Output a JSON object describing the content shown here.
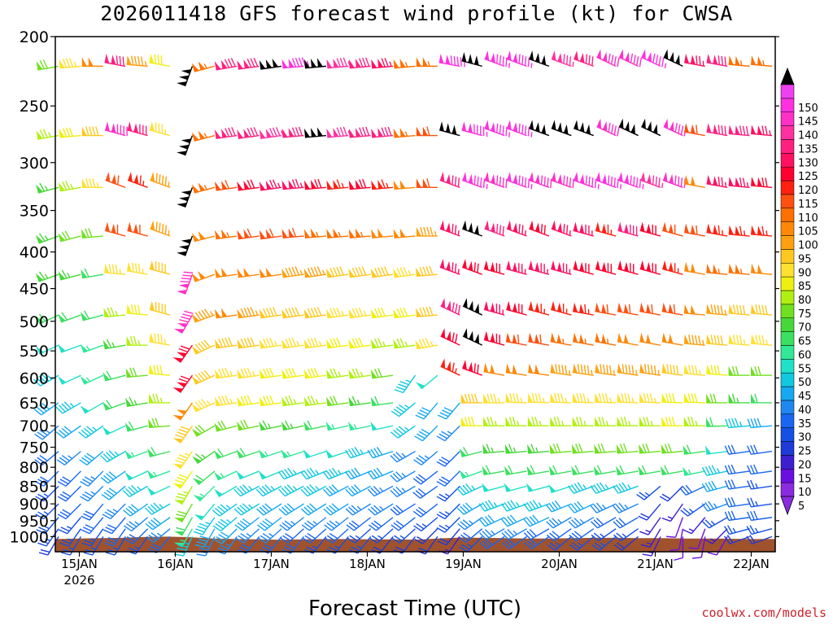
{
  "chart_data": {
    "type": "wind_barb_profile",
    "title": "2026011418 GFS forecast wind profile (kt) for CWSA",
    "xlabel": "Forecast Time (UTC)",
    "ylabel": "",
    "y_scale": "log",
    "y_inverted": true,
    "ylim": [
      1050,
      200
    ],
    "y_ticks": [
      200,
      250,
      300,
      350,
      400,
      450,
      500,
      550,
      600,
      650,
      700,
      750,
      800,
      850,
      900,
      950,
      1000
    ],
    "y_tick_labels": [
      "200",
      "250",
      "300",
      "350",
      "400",
      "450",
      "500",
      "550",
      "600",
      "650",
      "700",
      "750",
      "800",
      "850",
      "900",
      "950",
      "1000"
    ],
    "x_start": "2026-01-14T18",
    "x_end": "2026-01-22T06",
    "x_ticks": [
      "2026-01-15T00",
      "2026-01-16T00",
      "2026-01-17T00",
      "2026-01-18T00",
      "2026-01-19T00",
      "2026-01-20T00",
      "2026-01-21T00",
      "2026-01-22T00"
    ],
    "x_tick_labels": [
      "15JAN",
      "16JAN",
      "17JAN",
      "18JAN",
      "19JAN",
      "20JAN",
      "21JAN",
      "22JAN"
    ],
    "x_year_label": "2026",
    "colorbar": {
      "levels": [
        "5",
        "10",
        "15",
        "20",
        "25",
        "30",
        "35",
        "40",
        "45",
        "50",
        "55",
        "60",
        "65",
        "70",
        "75",
        "80",
        "85",
        "90",
        "95",
        "100",
        "105",
        "110",
        "115",
        "120",
        "125",
        "130",
        "135",
        "140",
        "145",
        "150"
      ],
      "colors": [
        "#8a2be2",
        "#6a0fe0",
        "#3d1fd0",
        "#1e3ad8",
        "#1450e6",
        "#1a66f0",
        "#1e88f0",
        "#16a8f0",
        "#10c8e0",
        "#20e0c8",
        "#30e896",
        "#3ae060",
        "#46d83a",
        "#70e020",
        "#b0f010",
        "#f0f010",
        "#ffe030",
        "#ffc820",
        "#ffa010",
        "#ff8808",
        "#ff7000",
        "#ff5010",
        "#ff2010",
        "#ff0030",
        "#ff1060",
        "#ff2080",
        "#ff30a0",
        "#ff30c8",
        "#ff30e0",
        "#ee40f0"
      ],
      "extend_high_color": "#000000",
      "extend_low_color": "#8a2be2"
    },
    "terrain_color": "#a0522d",
    "surface_pressure_hpa": [
      1008,
      1006,
      1005,
      1004,
      1001,
      1000,
      1002,
      1006,
      1008,
      1009,
      1010,
      1009,
      1008,
      1008,
      1009,
      1009,
      1010,
      1006,
      1003,
      1004,
      1005,
      1006,
      1006,
      1005,
      1004,
      1004,
      1005,
      1005,
      1006,
      1006,
      1007,
      1008,
      1008
    ],
    "wind_levels_hpa": [
      220,
      275,
      325,
      380,
      430,
      490,
      540,
      595,
      650,
      700,
      760,
      810,
      850,
      900,
      940,
      975,
      1000
    ],
    "wind_speed_kt": [
      [
        70,
        85,
        100,
        130,
        95,
        80,
        150,
        105,
        130,
        130,
        150,
        145,
        150,
        135,
        130,
        125,
        105,
        105,
        145,
        150,
        145,
        145,
        150,
        135,
        130,
        140,
        140,
        145,
        150,
        125,
        130,
        105,
        105
      ],
      [
        75,
        80,
        90,
        140,
        130,
        85,
        150,
        105,
        130,
        130,
        135,
        130,
        150,
        135,
        130,
        130,
        105,
        110,
        150,
        145,
        145,
        145,
        150,
        150,
        150,
        140,
        150,
        150,
        140,
        110,
        130,
        130,
        125
      ],
      [
        65,
        75,
        85,
        110,
        115,
        95,
        150,
        105,
        110,
        120,
        125,
        125,
        120,
        115,
        120,
        115,
        100,
        110,
        130,
        145,
        140,
        145,
        140,
        140,
        145,
        145,
        145,
        135,
        140,
        100,
        125,
        125,
        120
      ],
      [
        65,
        70,
        70,
        110,
        110,
        95,
        150,
        100,
        105,
        110,
        110,
        110,
        105,
        105,
        105,
        100,
        100,
        95,
        125,
        150,
        130,
        125,
        120,
        125,
        125,
        115,
        130,
        120,
        110,
        110,
        115,
        115,
        115
      ],
      [
        65,
        65,
        60,
        85,
        85,
        90,
        140,
        100,
        100,
        100,
        100,
        95,
        95,
        90,
        90,
        90,
        85,
        90,
        125,
        120,
        120,
        125,
        125,
        125,
        120,
        120,
        120,
        120,
        115,
        100,
        105,
        105,
        100
      ],
      [
        60,
        60,
        60,
        75,
        80,
        90,
        140,
        95,
        100,
        95,
        90,
        90,
        90,
        85,
        85,
        80,
        80,
        90,
        130,
        150,
        125,
        120,
        115,
        115,
        115,
        110,
        110,
        110,
        110,
        100,
        95,
        90,
        90
      ],
      [
        50,
        50,
        55,
        65,
        75,
        85,
        120,
        90,
        90,
        90,
        85,
        85,
        85,
        80,
        80,
        75,
        75,
        85,
        120,
        150,
        120,
        110,
        110,
        105,
        105,
        105,
        100,
        100,
        100,
        95,
        90,
        85,
        85
      ],
      [
        45,
        50,
        55,
        60,
        70,
        80,
        120,
        90,
        85,
        85,
        80,
        80,
        80,
        75,
        75,
        70,
        45,
        50,
        115,
        120,
        100,
        100,
        100,
        95,
        95,
        95,
        95,
        95,
        90,
        85,
        80,
        70,
        70
      ],
      [
        40,
        45,
        50,
        60,
        65,
        75,
        100,
        85,
        85,
        80,
        80,
        75,
        75,
        70,
        65,
        60,
        45,
        40,
        40,
        90,
        85,
        85,
        85,
        85,
        85,
        85,
        85,
        85,
        80,
        80,
        70,
        65,
        60
      ],
      [
        35,
        40,
        45,
        50,
        60,
        70,
        90,
        70,
        70,
        70,
        65,
        65,
        60,
        55,
        55,
        50,
        45,
        40,
        35,
        80,
        75,
        75,
        75,
        75,
        75,
        75,
        75,
        75,
        80,
        75,
        60,
        45,
        40
      ],
      [
        30,
        35,
        40,
        45,
        55,
        60,
        85,
        65,
        60,
        60,
        55,
        55,
        50,
        50,
        45,
        40,
        35,
        35,
        30,
        60,
        65,
        65,
        65,
        70,
        70,
        70,
        70,
        70,
        70,
        60,
        50,
        30,
        30
      ],
      [
        30,
        30,
        35,
        40,
        50,
        55,
        80,
        60,
        55,
        50,
        50,
        45,
        45,
        45,
        40,
        40,
        35,
        30,
        30,
        55,
        60,
        60,
        60,
        60,
        60,
        60,
        60,
        60,
        60,
        55,
        45,
        30,
        30
      ],
      [
        25,
        30,
        35,
        40,
        45,
        50,
        75,
        55,
        50,
        45,
        45,
        45,
        45,
        40,
        40,
        35,
        35,
        30,
        25,
        45,
        50,
        50,
        50,
        50,
        45,
        45,
        45,
        25,
        20,
        30,
        40,
        30,
        25
      ],
      [
        25,
        30,
        30,
        35,
        40,
        45,
        70,
        50,
        45,
        45,
        40,
        40,
        40,
        40,
        35,
        35,
        30,
        30,
        25,
        40,
        45,
        45,
        45,
        40,
        40,
        35,
        35,
        20,
        15,
        25,
        35,
        30,
        25
      ],
      [
        25,
        25,
        30,
        30,
        35,
        40,
        60,
        45,
        45,
        40,
        40,
        35,
        35,
        35,
        30,
        30,
        30,
        25,
        25,
        35,
        40,
        40,
        40,
        35,
        35,
        30,
        30,
        15,
        10,
        15,
        25,
        30,
        30
      ],
      [
        25,
        25,
        25,
        30,
        30,
        35,
        55,
        40,
        40,
        35,
        35,
        30,
        30,
        30,
        25,
        25,
        25,
        20,
        20,
        30,
        35,
        35,
        30,
        30,
        30,
        25,
        25,
        15,
        10,
        10,
        15,
        25,
        25
      ],
      [
        20,
        25,
        25,
        25,
        25,
        30,
        45,
        35,
        35,
        30,
        30,
        30,
        25,
        25,
        25,
        20,
        20,
        20,
        15,
        25,
        30,
        30,
        30,
        25,
        25,
        25,
        20,
        15,
        10,
        10,
        10,
        20,
        20
      ]
    ],
    "wind_direction_deg": [
      [
        260,
        265,
        270,
        280,
        275,
        280,
        200,
        255,
        260,
        262,
        262,
        265,
        265,
        265,
        265,
        265,
        265,
        270,
        280,
        285,
        290,
        290,
        290,
        290,
        290,
        295,
        295,
        295,
        295,
        280,
        280,
        275,
        275
      ],
      [
        260,
        265,
        270,
        285,
        285,
        285,
        200,
        255,
        262,
        262,
        262,
        265,
        265,
        265,
        265,
        265,
        265,
        270,
        285,
        285,
        290,
        290,
        290,
        290,
        290,
        295,
        295,
        295,
        295,
        280,
        280,
        275,
        275
      ],
      [
        255,
        260,
        270,
        290,
        290,
        290,
        200,
        255,
        262,
        262,
        262,
        265,
        265,
        265,
        265,
        265,
        265,
        270,
        290,
        290,
        290,
        290,
        290,
        290,
        290,
        290,
        290,
        290,
        290,
        280,
        280,
        275,
        275
      ],
      [
        250,
        255,
        265,
        285,
        285,
        290,
        200,
        255,
        262,
        262,
        262,
        265,
        265,
        265,
        265,
        265,
        265,
        270,
        290,
        290,
        290,
        290,
        290,
        290,
        285,
        285,
        285,
        285,
        285,
        280,
        280,
        275,
        275
      ],
      [
        250,
        255,
        260,
        275,
        280,
        285,
        200,
        250,
        262,
        262,
        262,
        262,
        262,
        262,
        262,
        262,
        262,
        265,
        290,
        290,
        285,
        285,
        285,
        285,
        285,
        285,
        285,
        285,
        285,
        280,
        275,
        275,
        275
      ],
      [
        245,
        250,
        255,
        265,
        275,
        285,
        210,
        250,
        262,
        262,
        262,
        262,
        262,
        262,
        262,
        262,
        262,
        265,
        295,
        295,
        285,
        285,
        285,
        285,
        280,
        280,
        280,
        280,
        280,
        275,
        275,
        275,
        275
      ],
      [
        245,
        250,
        250,
        260,
        270,
        280,
        215,
        245,
        262,
        262,
        262,
        262,
        262,
        262,
        262,
        262,
        262,
        260,
        295,
        295,
        285,
        280,
        280,
        280,
        280,
        280,
        280,
        280,
        280,
        275,
        275,
        275,
        275
      ],
      [
        240,
        245,
        245,
        255,
        265,
        275,
        215,
        245,
        262,
        262,
        262,
        262,
        262,
        262,
        262,
        262,
        215,
        230,
        295,
        290,
        280,
        278,
        278,
        278,
        278,
        278,
        278,
        278,
        278,
        275,
        275,
        270,
        270
      ],
      [
        235,
        240,
        240,
        250,
        260,
        270,
        215,
        245,
        262,
        262,
        262,
        262,
        262,
        262,
        262,
        262,
        230,
        220,
        220,
        270,
        270,
        272,
        272,
        272,
        272,
        272,
        272,
        272,
        272,
        272,
        270,
        270,
        270
      ],
      [
        230,
        235,
        235,
        245,
        255,
        265,
        215,
        240,
        255,
        258,
        258,
        258,
        258,
        258,
        258,
        258,
        235,
        225,
        225,
        270,
        270,
        270,
        270,
        270,
        270,
        270,
        270,
        270,
        270,
        270,
        268,
        265,
        265
      ],
      [
        230,
        230,
        230,
        240,
        250,
        255,
        215,
        235,
        250,
        252,
        252,
        252,
        252,
        252,
        252,
        252,
        240,
        230,
        225,
        255,
        265,
        265,
        265,
        265,
        265,
        265,
        265,
        265,
        265,
        262,
        262,
        262,
        262
      ],
      [
        225,
        225,
        225,
        235,
        245,
        250,
        215,
        230,
        245,
        248,
        248,
        248,
        248,
        248,
        248,
        248,
        240,
        232,
        225,
        250,
        260,
        260,
        260,
        260,
        260,
        260,
        260,
        260,
        260,
        258,
        258,
        262,
        262
      ],
      [
        225,
        225,
        225,
        230,
        240,
        245,
        210,
        225,
        240,
        242,
        242,
        242,
        242,
        242,
        242,
        242,
        240,
        235,
        225,
        245,
        255,
        255,
        255,
        252,
        250,
        250,
        250,
        230,
        225,
        245,
        255,
        262,
        262
      ],
      [
        225,
        225,
        220,
        225,
        235,
        240,
        210,
        220,
        235,
        238,
        238,
        238,
        238,
        238,
        238,
        238,
        238,
        232,
        225,
        240,
        250,
        250,
        250,
        248,
        245,
        245,
        245,
        220,
        215,
        235,
        250,
        262,
        262
      ],
      [
        220,
        220,
        220,
        220,
        230,
        235,
        210,
        215,
        230,
        232,
        232,
        232,
        232,
        232,
        232,
        232,
        232,
        230,
        225,
        235,
        245,
        245,
        245,
        240,
        240,
        240,
        240,
        215,
        200,
        220,
        240,
        262,
        262
      ],
      [
        215,
        215,
        215,
        215,
        225,
        230,
        210,
        210,
        225,
        228,
        228,
        228,
        228,
        228,
        228,
        228,
        228,
        225,
        220,
        230,
        240,
        240,
        240,
        235,
        235,
        235,
        235,
        210,
        190,
        200,
        225,
        255,
        255
      ],
      [
        210,
        210,
        210,
        210,
        215,
        220,
        205,
        205,
        215,
        218,
        218,
        218,
        218,
        218,
        218,
        218,
        218,
        215,
        215,
        225,
        235,
        235,
        235,
        230,
        230,
        230,
        230,
        205,
        180,
        190,
        210,
        250,
        250
      ]
    ]
  },
  "credit": "coolwx.com/models"
}
